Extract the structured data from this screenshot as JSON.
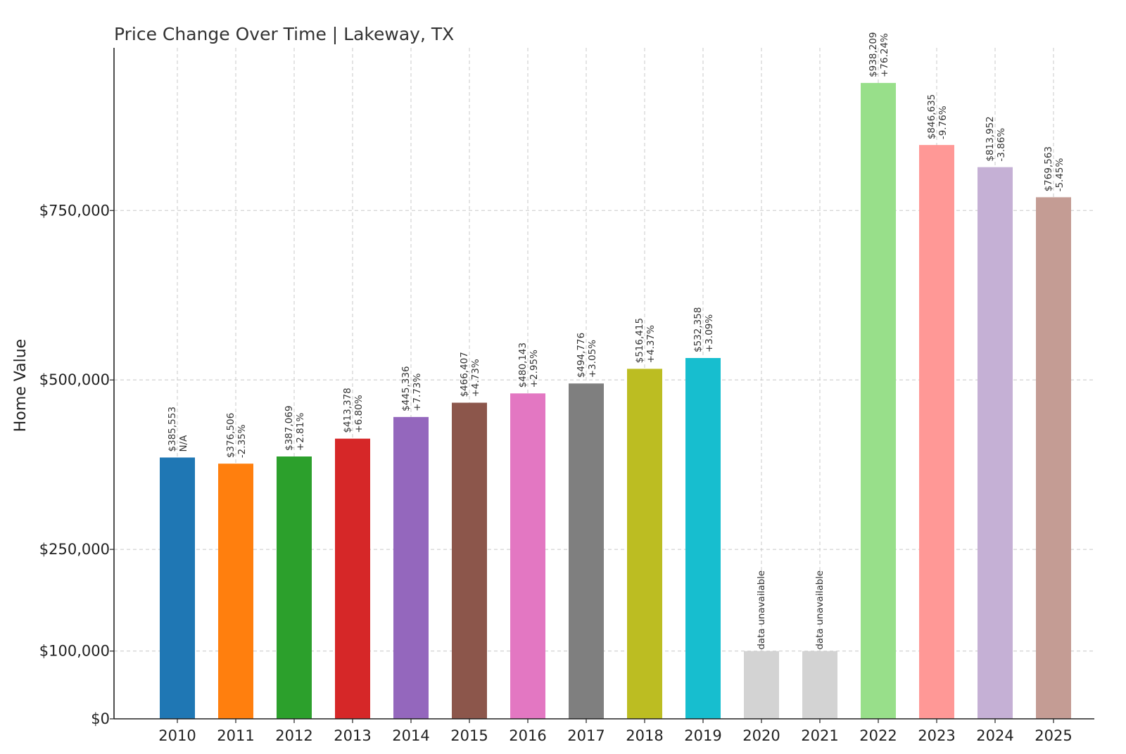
{
  "chart_data": {
    "type": "bar",
    "title": "Price Change Over Time | Lakeway, TX",
    "xlabel": "",
    "ylabel": "Home Value",
    "ylim": [
      0,
      990000
    ],
    "grid": true,
    "yticks": [
      {
        "value": 0,
        "label": "$0"
      },
      {
        "value": 100000,
        "label": "$100,000"
      },
      {
        "value": 250000,
        "label": "$250,000"
      },
      {
        "value": 500000,
        "label": "$500,000"
      },
      {
        "value": 750000,
        "label": "$750,000"
      }
    ],
    "bars": [
      {
        "category": "2010",
        "value": 385553,
        "value_label": "$385,553",
        "change_label": "N/A",
        "color": "#1f77b4"
      },
      {
        "category": "2011",
        "value": 376506,
        "value_label": "$376,506",
        "change_label": "-2.35%",
        "color": "#ff7f0e"
      },
      {
        "category": "2012",
        "value": 387069,
        "value_label": "$387,069",
        "change_label": "+2.81%",
        "color": "#2ca02c"
      },
      {
        "category": "2013",
        "value": 413378,
        "value_label": "$413,378",
        "change_label": "+6.80%",
        "color": "#d62728"
      },
      {
        "category": "2014",
        "value": 445336,
        "value_label": "$445,336",
        "change_label": "+7.73%",
        "color": "#9467bd"
      },
      {
        "category": "2015",
        "value": 466407,
        "value_label": "$466,407",
        "change_label": "+4.73%",
        "color": "#8c564b"
      },
      {
        "category": "2016",
        "value": 480143,
        "value_label": "$480,143",
        "change_label": "+2.95%",
        "color": "#e377c2"
      },
      {
        "category": "2017",
        "value": 494776,
        "value_label": "$494,776",
        "change_label": "+3.05%",
        "color": "#7f7f7f"
      },
      {
        "category": "2018",
        "value": 516415,
        "value_label": "$516,415",
        "change_label": "+4.37%",
        "color": "#bcbd22"
      },
      {
        "category": "2019",
        "value": 532358,
        "value_label": "$532,358",
        "change_label": "+3.09%",
        "color": "#17becf"
      },
      {
        "category": "2020",
        "value": 100000,
        "value_label": "data unavailable",
        "change_label": "",
        "color": "#d3d3d3"
      },
      {
        "category": "2021",
        "value": 100000,
        "value_label": "data unavailable",
        "change_label": "",
        "color": "#d3d3d3"
      },
      {
        "category": "2022",
        "value": 938209,
        "value_label": "$938,209",
        "change_label": "+76.24%",
        "color": "#98df8a"
      },
      {
        "category": "2023",
        "value": 846635,
        "value_label": "$846,635",
        "change_label": "-9.76%",
        "color": "#ff9896"
      },
      {
        "category": "2024",
        "value": 813952,
        "value_label": "$813,952",
        "change_label": "-3.86%",
        "color": "#c5b0d5"
      },
      {
        "category": "2025",
        "value": 769563,
        "value_label": "$769,563",
        "change_label": "-5.45%",
        "color": "#c49c94"
      }
    ]
  }
}
